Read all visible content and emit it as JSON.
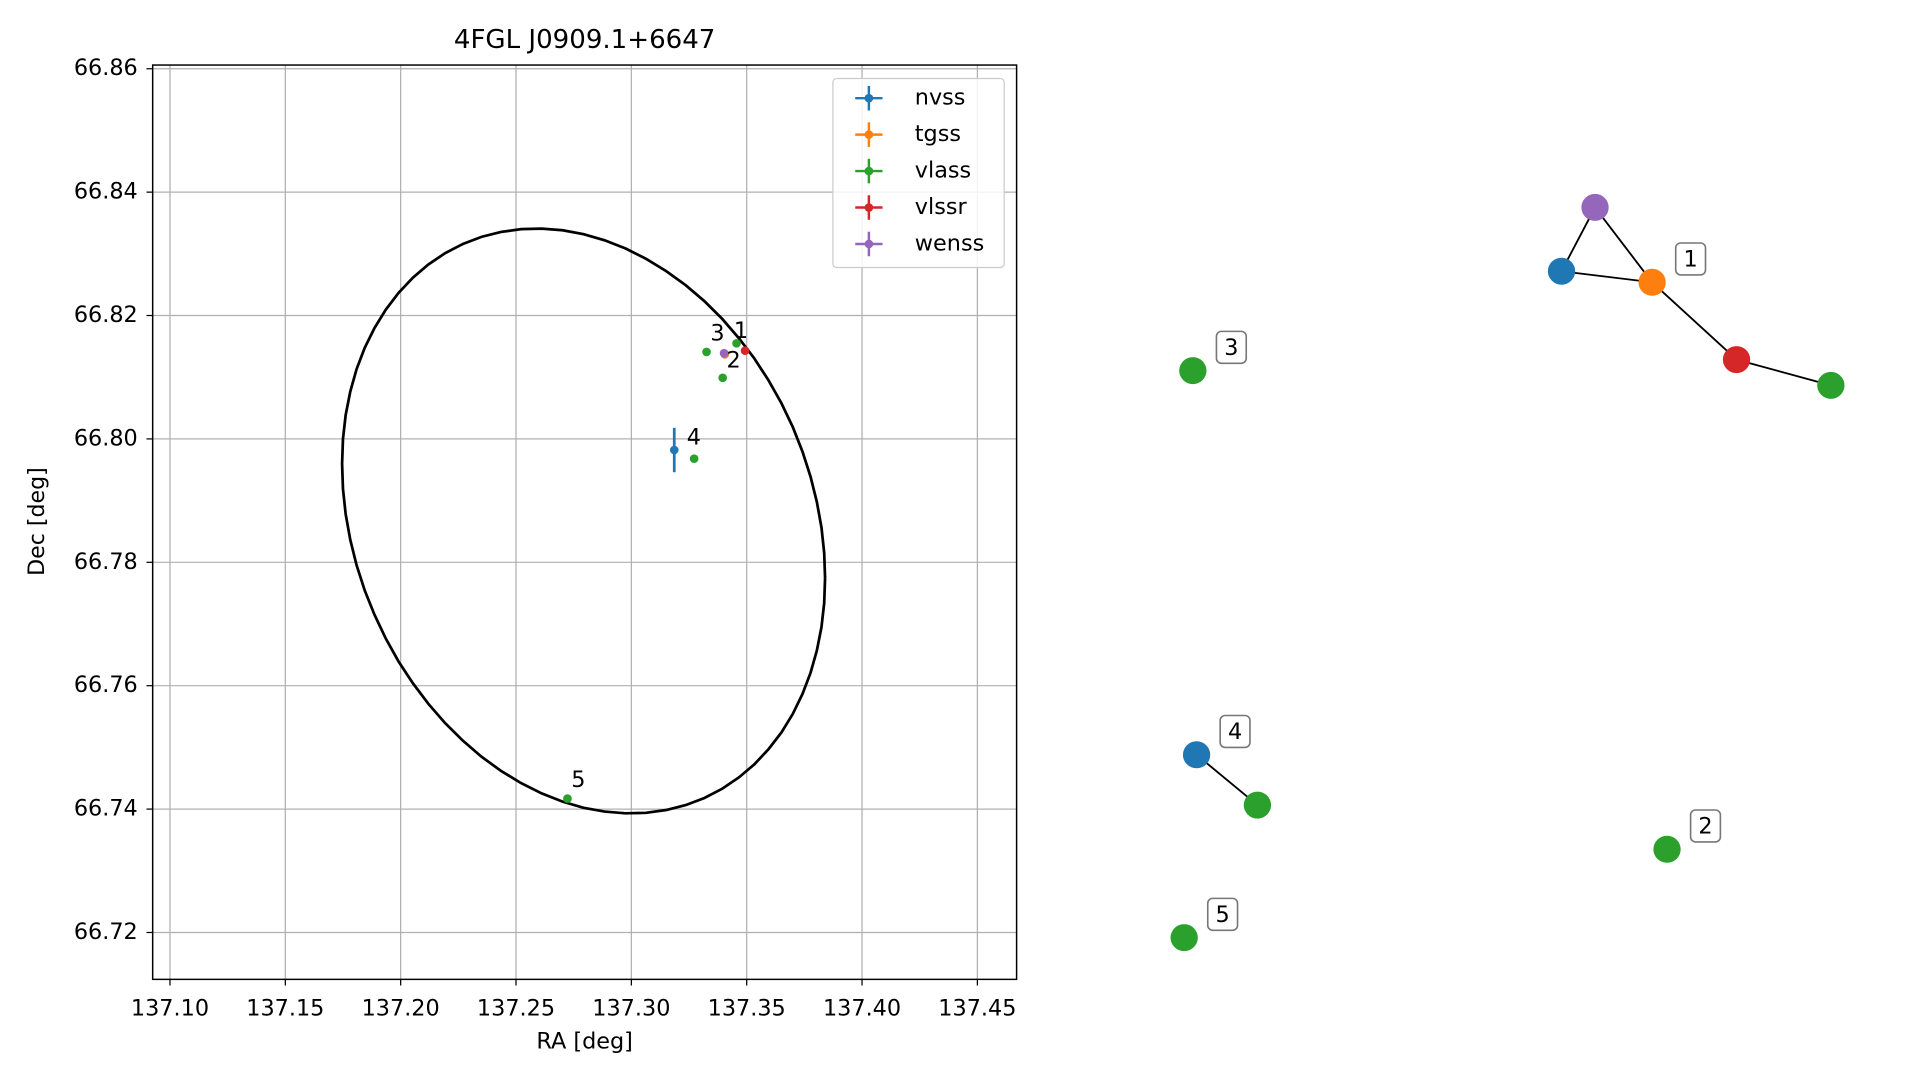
{
  "chart_data": [
    {
      "type": "scatter",
      "title": "4FGL J0909.1+6647",
      "x_label": "RA [deg]",
      "y_label": "Dec [deg]",
      "xlim": [
        137.0925,
        137.467
      ],
      "ylim": [
        66.7124,
        66.8606
      ],
      "xticks": [
        {
          "value": 137.1,
          "label": "137.10"
        },
        137.15,
        {
          "value": 137.2,
          "label": "137.20"
        },
        137.25,
        {
          "value": 137.3,
          "label": "137.30"
        },
        137.35,
        {
          "value": 137.4,
          "label": "137.40"
        },
        137.45
      ],
      "yticks": [
        66.72,
        66.74,
        66.76,
        66.78,
        {
          "value": 66.8,
          "label": "66.80"
        },
        66.82,
        66.84,
        66.86
      ],
      "grid": true,
      "legend": "upper right",
      "series": [
        {
          "name": "nvss",
          "color": "#1f77b4",
          "x": [
            137.3186
          ],
          "values": [
            66.7982
          ],
          "yerr": [
            0.0036
          ]
        },
        {
          "name": "tgss",
          "color": "#ff7f0e",
          "x": [
            137.3405
          ],
          "values": [
            66.8137
          ]
        },
        {
          "name": "vlass",
          "color": "#2ca02c",
          "x": [
            137.3456,
            137.3396,
            137.3326,
            137.3272,
            137.2723
          ],
          "values": [
            66.8155,
            66.8099,
            66.8141,
            66.7968,
            66.7417
          ]
        },
        {
          "name": "vlssr",
          "color": "#d62728",
          "x": [
            137.3493
          ],
          "values": [
            66.8143
          ]
        },
        {
          "name": "wenss",
          "color": "#9467bd",
          "x": [
            137.3402
          ],
          "values": [
            66.8139
          ]
        }
      ],
      "annotations": [
        "1",
        "2",
        "3",
        "4",
        "5"
      ],
      "ellipse": {
        "center": [
          137.2793,
          66.7867
        ],
        "semi_axes": [
          0.1047,
          0.0474
        ],
        "phase": -0.197
      }
    },
    {
      "type": "graph",
      "nodes": [
        {
          "color": "#9467bd"
        },
        {
          "color": "#1f77b4"
        },
        {
          "color": "#ff7f0e"
        },
        {
          "color": "#d62728"
        },
        {
          "color": "#2ca02c"
        },
        {
          "color": "#2ca02c"
        },
        {
          "color": "#1f77b4"
        },
        {
          "color": "#2ca02c"
        },
        {
          "color": "#2ca02c"
        },
        {
          "color": "#2ca02c"
        }
      ],
      "edges": [
        [
          0,
          1
        ],
        [
          0,
          2
        ],
        [
          1,
          2
        ],
        [
          2,
          3
        ],
        [
          3,
          4
        ],
        [
          6,
          7
        ]
      ],
      "labels": [
        {
          "text": "1",
          "node": 2
        },
        {
          "text": "3",
          "node": 5
        },
        {
          "text": "4",
          "node": 6
        },
        {
          "text": "2",
          "node": 8
        },
        {
          "text": "5",
          "node": 9
        }
      ]
    }
  ]
}
